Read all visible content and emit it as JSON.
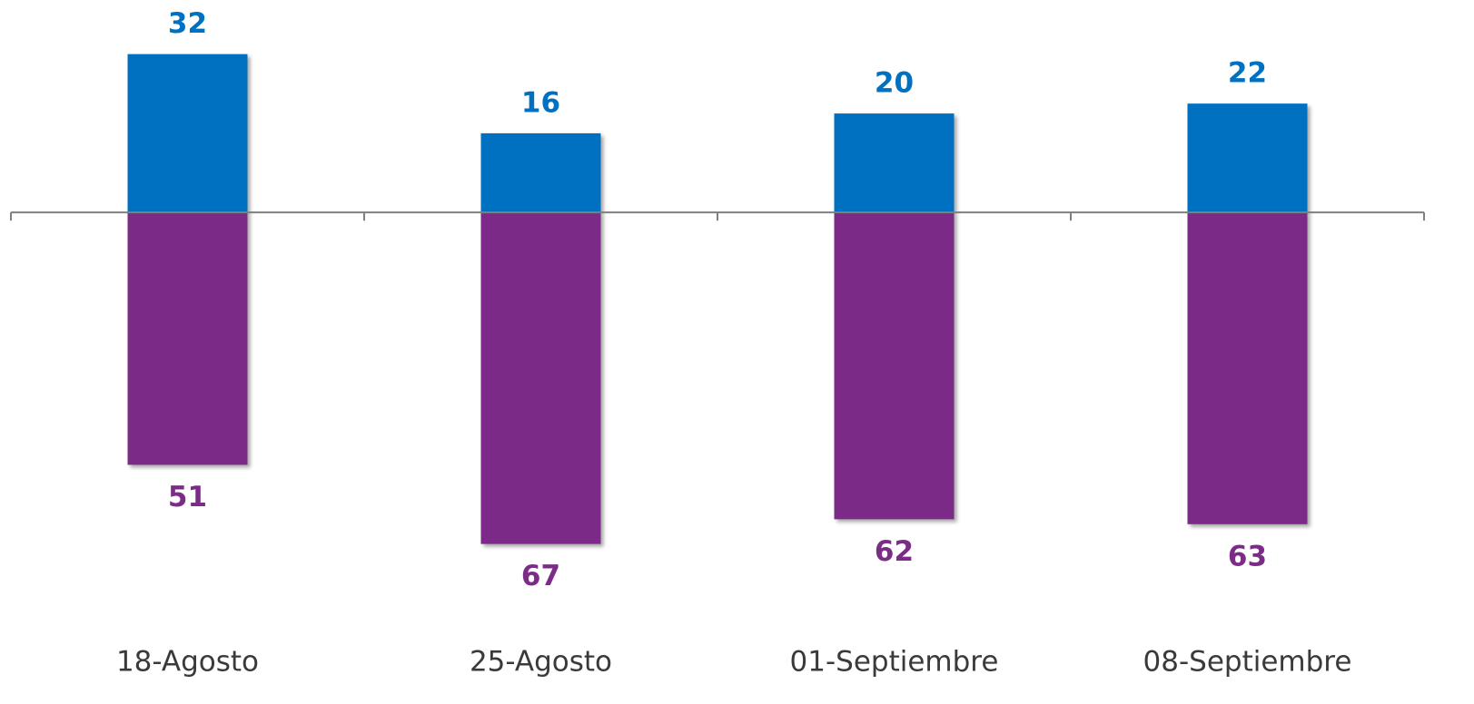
{
  "chart_data": {
    "type": "bar",
    "categories": [
      "18-Agosto",
      "25-Agosto",
      "01-Septiembre",
      "08-Septiembre"
    ],
    "series": [
      {
        "color": "#0070c0",
        "direction": "up",
        "values": [
          32,
          16,
          20,
          22
        ]
      },
      {
        "color": "#7b2c87",
        "direction": "down",
        "values": [
          51,
          67,
          62,
          63
        ]
      }
    ],
    "ylim": [
      -70,
      40
    ]
  }
}
